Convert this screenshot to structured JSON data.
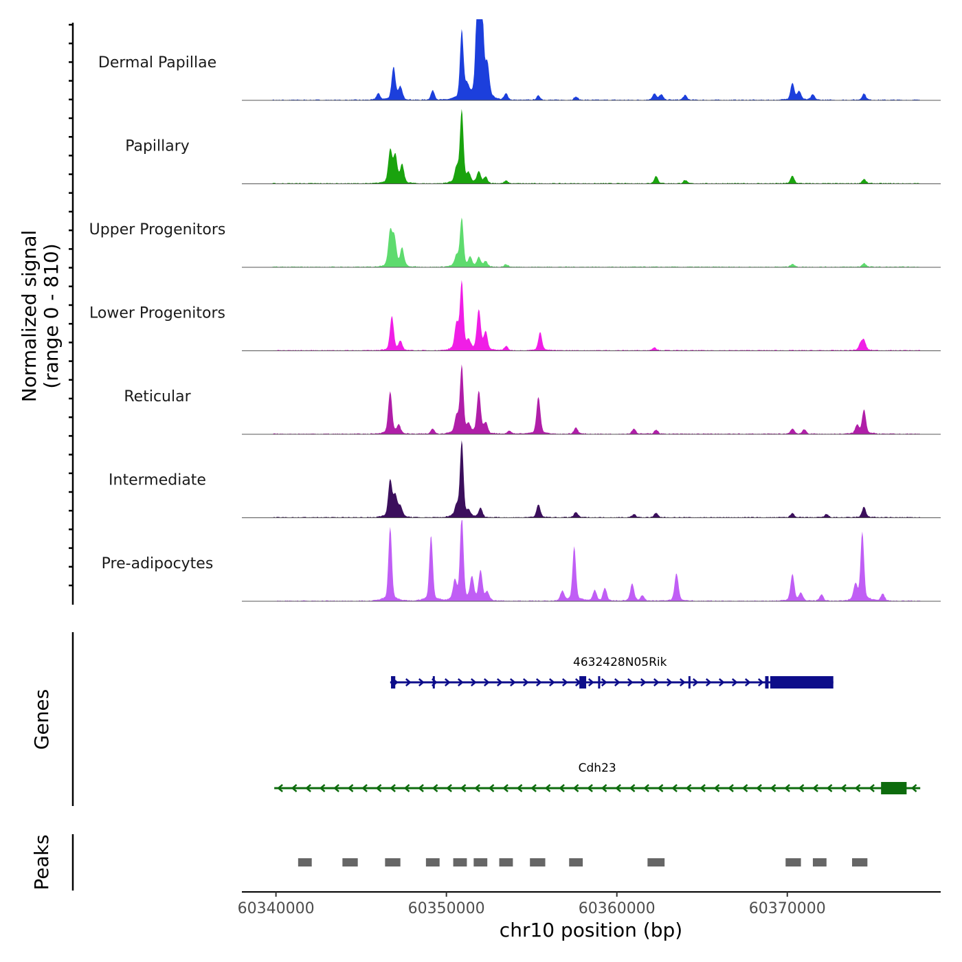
{
  "chart_data": {
    "type": "area",
    "title": "",
    "ylabel": "Normalized signal",
    "ylabel_range": "(range 0 - 810)",
    "ylim": [
      0,
      810
    ],
    "xlabel": "chr10 position (bp)",
    "xlim": [
      60338000,
      60379000
    ],
    "xticks": [
      60340000,
      60350000,
      60360000,
      60370000
    ],
    "tracks": [
      {
        "name": "Dermal Papillae",
        "color": "#1c3fdc",
        "peaks": [
          [
            60346900,
            310
          ],
          [
            60347300,
            120
          ],
          [
            60346000,
            60
          ],
          [
            60349200,
            90
          ],
          [
            60350900,
            650
          ],
          [
            60351800,
            710
          ],
          [
            60351950,
            780
          ],
          [
            60352100,
            660
          ],
          [
            60352400,
            300
          ],
          [
            60351200,
            110
          ],
          [
            60353500,
            60
          ],
          [
            60355400,
            40
          ],
          [
            60357600,
            30
          ],
          [
            60362200,
            60
          ],
          [
            60362600,
            50
          ],
          [
            60364000,
            45
          ],
          [
            60370300,
            160
          ],
          [
            60370700,
            80
          ],
          [
            60371500,
            50
          ],
          [
            60374500,
            60
          ]
        ]
      },
      {
        "name": "Papillary",
        "color": "#1aa30e",
        "peaks": [
          [
            60346700,
            310
          ],
          [
            60347000,
            260
          ],
          [
            60347400,
            170
          ],
          [
            60350600,
            140
          ],
          [
            60350900,
            690
          ],
          [
            60351300,
            80
          ],
          [
            60351900,
            110
          ],
          [
            60352300,
            60
          ],
          [
            60353500,
            25
          ],
          [
            60362300,
            70
          ],
          [
            60364000,
            30
          ],
          [
            60370300,
            70
          ],
          [
            60374500,
            40
          ]
        ]
      },
      {
        "name": "Upper Progenitors",
        "color": "#5edb6e",
        "peaks": [
          [
            60346700,
            330
          ],
          [
            60346950,
            270
          ],
          [
            60347400,
            170
          ],
          [
            60350600,
            100
          ],
          [
            60350900,
            460
          ],
          [
            60351400,
            80
          ],
          [
            60351900,
            90
          ],
          [
            60352300,
            50
          ],
          [
            60353500,
            25
          ],
          [
            60370300,
            30
          ],
          [
            60374500,
            35
          ]
        ]
      },
      {
        "name": "Lower Progenitors",
        "color": "#f01ee6",
        "peaks": [
          [
            60346800,
            320
          ],
          [
            60347300,
            80
          ],
          [
            60350600,
            240
          ],
          [
            60350900,
            640
          ],
          [
            60351300,
            80
          ],
          [
            60351900,
            380
          ],
          [
            60352300,
            170
          ],
          [
            60353500,
            40
          ],
          [
            60355500,
            170
          ],
          [
            60362200,
            30
          ],
          [
            60374300,
            60
          ],
          [
            60374500,
            90
          ]
        ]
      },
      {
        "name": "Reticular",
        "color": "#b01ea8",
        "peaks": [
          [
            60346700,
            400
          ],
          [
            60347200,
            80
          ],
          [
            60349200,
            50
          ],
          [
            60350600,
            160
          ],
          [
            60350900,
            640
          ],
          [
            60351300,
            70
          ],
          [
            60351900,
            400
          ],
          [
            60352300,
            100
          ],
          [
            60353700,
            30
          ],
          [
            60355400,
            350
          ],
          [
            60357600,
            60
          ],
          [
            60361000,
            50
          ],
          [
            60362300,
            40
          ],
          [
            60370300,
            50
          ],
          [
            60371000,
            40
          ],
          [
            60374100,
            80
          ],
          [
            60374500,
            230
          ]
        ]
      },
      {
        "name": "Intermediate",
        "color": "#3b0f5c",
        "peaks": [
          [
            60346700,
            350
          ],
          [
            60347000,
            200
          ],
          [
            60347300,
            100
          ],
          [
            60350600,
            100
          ],
          [
            60350900,
            720
          ],
          [
            60351300,
            50
          ],
          [
            60352000,
            90
          ],
          [
            60355400,
            120
          ],
          [
            60357600,
            50
          ],
          [
            60361000,
            30
          ],
          [
            60362300,
            40
          ],
          [
            60370300,
            40
          ],
          [
            60372300,
            30
          ],
          [
            60374500,
            100
          ]
        ]
      },
      {
        "name": "Pre-adipocytes",
        "color": "#c05ef5",
        "peaks": [
          [
            60346700,
            700
          ],
          [
            60349100,
            620
          ],
          [
            60350900,
            800
          ],
          [
            60350500,
            180
          ],
          [
            60351500,
            210
          ],
          [
            60352000,
            280
          ],
          [
            60352400,
            80
          ],
          [
            60356800,
            90
          ],
          [
            60357500,
            510
          ],
          [
            60358700,
            100
          ],
          [
            60359300,
            120
          ],
          [
            60360900,
            160
          ],
          [
            60361500,
            50
          ],
          [
            60363500,
            260
          ],
          [
            60370300,
            250
          ],
          [
            60370800,
            70
          ],
          [
            60372000,
            60
          ],
          [
            60374000,
            150
          ],
          [
            60374400,
            650
          ],
          [
            60375600,
            70
          ]
        ]
      }
    ],
    "genes": {
      "title": "Genes",
      "items": [
        {
          "name": "4632428N05Rik",
          "strand": "+",
          "color": "#0d0d8a",
          "start": 60346700,
          "end": 60372700,
          "exons": [
            [
              60346750,
              60347000
            ],
            [
              60349200,
              60349250
            ],
            [
              60357800,
              60358200
            ],
            [
              60358900,
              60358950
            ],
            [
              60364200,
              60364250
            ],
            [
              60368700,
              60368900
            ],
            [
              60369000,
              60372700
            ]
          ]
        },
        {
          "name": "Cdh23",
          "strand": "-",
          "color": "#0d6b0d",
          "start": 60339900,
          "end": 60377800,
          "exons": [
            [
              60375500,
              60377000
            ]
          ]
        }
      ]
    },
    "peaks": {
      "title": "Peaks",
      "color": "#666666",
      "regions": [
        [
          60341300,
          60342100
        ],
        [
          60343900,
          60344800
        ],
        [
          60346400,
          60347300
        ],
        [
          60348800,
          60349600
        ],
        [
          60350400,
          60351200
        ],
        [
          60351600,
          60352400
        ],
        [
          60353100,
          60353900
        ],
        [
          60354900,
          60355800
        ],
        [
          60357200,
          60358000
        ],
        [
          60361800,
          60362800
        ],
        [
          60369900,
          60370800
        ],
        [
          60371500,
          60372300
        ],
        [
          60373800,
          60374700
        ]
      ]
    }
  }
}
